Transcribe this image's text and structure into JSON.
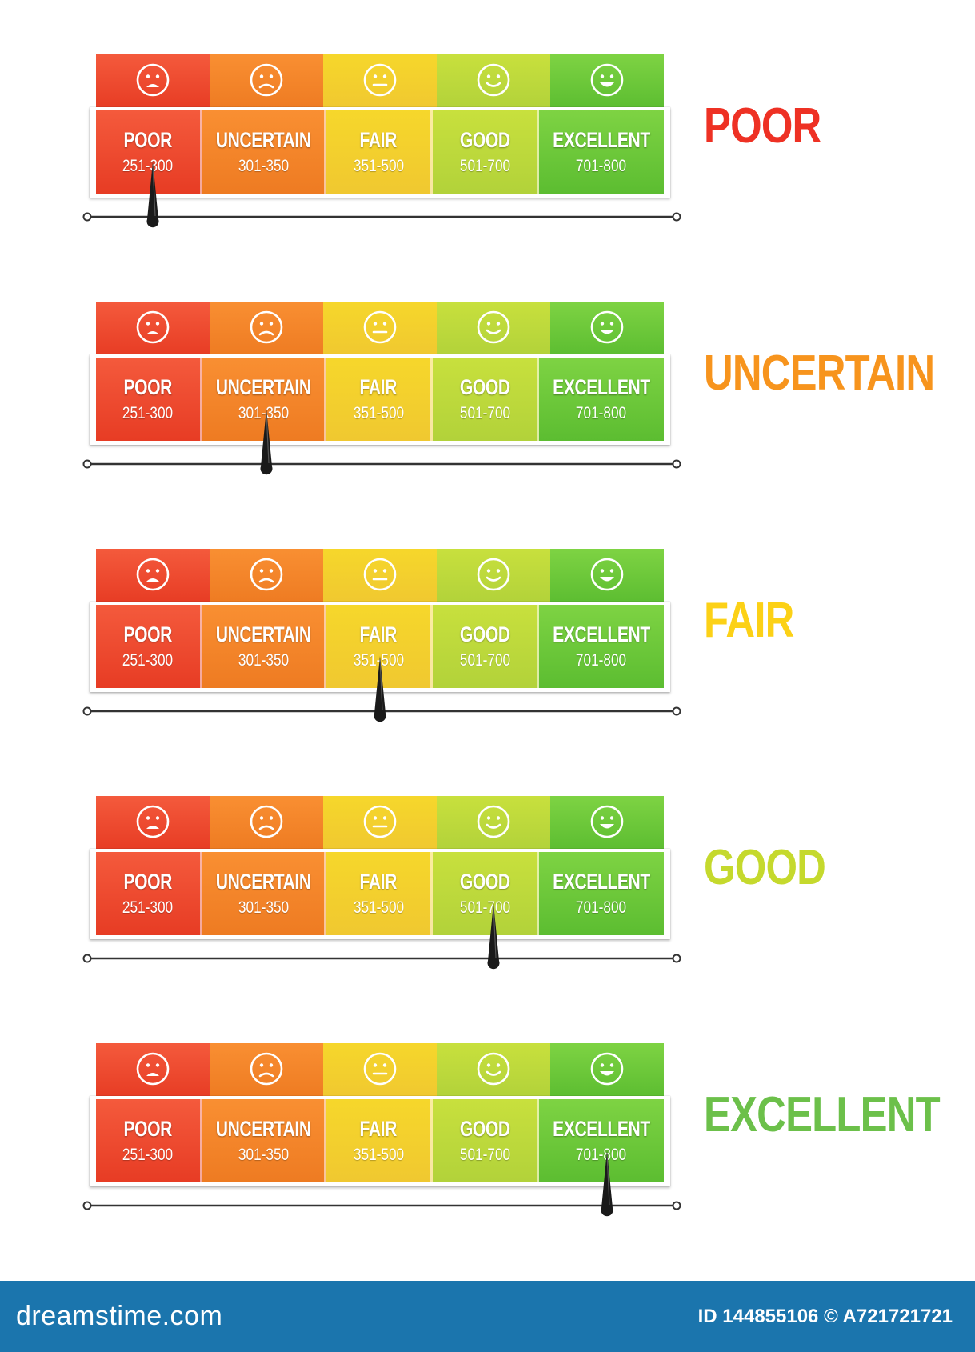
{
  "categories": [
    {
      "name": "POOR",
      "range": "251-300",
      "face": "sad-face-icon",
      "top": "#f45a3c",
      "bottom": "#e73c24"
    },
    {
      "name": "UNCERTAIN",
      "range": "301-350",
      "face": "frown-face-icon",
      "top": "#f98f32",
      "bottom": "#ee7b22"
    },
    {
      "name": "FAIR",
      "range": "351-500",
      "face": "neutral-face-icon",
      "top": "#f6d72b",
      "bottom": "#f0c830"
    },
    {
      "name": "GOOD",
      "range": "501-700",
      "face": "smile-face-icon",
      "top": "#c8e03d",
      "bottom": "#b2d23a"
    },
    {
      "name": "EXCELLENT",
      "range": "701-800",
      "face": "grin-face-icon",
      "top": "#7ed343",
      "bottom": "#5cbd31"
    }
  ],
  "meters": [
    {
      "status": "POOR",
      "status_color": "#ee3124",
      "pointer_index": 0,
      "pointer_position": 0.5
    },
    {
      "status": "UNCERTAIN",
      "status_color": "#f7941d",
      "pointer_index": 1,
      "pointer_position": 0.5
    },
    {
      "status": "FAIR",
      "status_color": "#fcd116",
      "pointer_index": 2,
      "pointer_position": 0.5
    },
    {
      "status": "GOOD",
      "status_color": "#c5d92d",
      "pointer_index": 3,
      "pointer_position": 0.5
    },
    {
      "status": "EXCELLENT",
      "status_color": "#6cc04a",
      "pointer_index": 4,
      "pointer_position": 0.5
    }
  ],
  "footer": {
    "logo": "dreamstime.com",
    "id_text": "ID 144855106 © A721721721",
    "background": "#1b75ad"
  }
}
